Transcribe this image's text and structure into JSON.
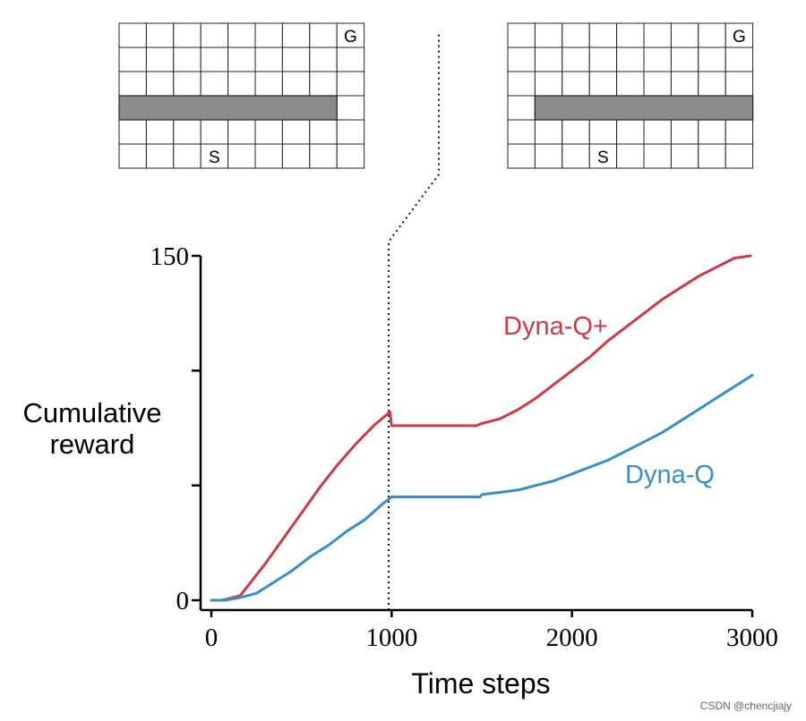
{
  "colors": {
    "dyna_q_plus": "#cc3b45",
    "dyna_q": "#3a8ec2",
    "wall": "#8c8c8c",
    "axis": "#000000"
  },
  "mazes": [
    {
      "rows": 6,
      "cols": 9,
      "wall_row": 3,
      "wall_cols": [
        0,
        7
      ],
      "start": {
        "row": 5,
        "col": 3
      },
      "goal": {
        "row": 0,
        "col": 8
      },
      "start_label": "S",
      "goal_label": "G"
    },
    {
      "rows": 6,
      "cols": 9,
      "wall_row": 3,
      "wall_cols": [
        1,
        8
      ],
      "start": {
        "row": 5,
        "col": 3
      },
      "goal": {
        "row": 0,
        "col": 8
      },
      "start_label": "S",
      "goal_label": "G"
    }
  ],
  "chart_data": {
    "type": "line",
    "title": "",
    "xlabel": "Time steps",
    "ylabel": [
      "Cumulative",
      "reward"
    ],
    "xlim": [
      0,
      3000
    ],
    "ylim": [
      0,
      150
    ],
    "x_ticks": [
      0,
      1000,
      2000,
      3000
    ],
    "y_tick_labels": [
      {
        "value": 0,
        "label": "0"
      },
      {
        "value": 150,
        "label": "150"
      }
    ],
    "y_minor_ticks": [
      50,
      100
    ],
    "environment_change_at": 1000,
    "series": [
      {
        "name": "Dyna-Q+",
        "key": "dyna_q_plus",
        "x": [
          0,
          60,
          160,
          200,
          300,
          400,
          500,
          600,
          700,
          800,
          900,
          990,
          1000,
          1470,
          1500,
          1600,
          1700,
          1800,
          1900,
          2000,
          2100,
          2200,
          2300,
          2400,
          2500,
          2600,
          2700,
          2800,
          2900,
          2990
        ],
        "y": [
          0,
          0,
          2,
          6,
          16,
          27,
          38,
          49,
          59,
          68,
          76,
          82,
          76,
          76,
          77,
          79,
          83,
          88,
          94,
          100,
          106,
          113,
          119,
          125,
          131,
          136,
          141,
          145,
          149,
          150
        ]
      },
      {
        "name": "Dyna-Q",
        "key": "dyna_q",
        "x": [
          0,
          80,
          150,
          250,
          350,
          450,
          550,
          650,
          750,
          850,
          950,
          1000,
          1490,
          1500,
          1600,
          1700,
          1800,
          1900,
          2000,
          2100,
          2200,
          2300,
          2400,
          2500,
          2600,
          2700,
          2800,
          2900,
          3000
        ],
        "y": [
          0,
          0,
          1,
          3,
          8,
          13,
          19,
          24,
          30,
          35,
          42,
          45,
          45,
          46,
          47,
          48,
          50,
          52,
          55,
          58,
          61,
          65,
          69,
          73,
          78,
          83,
          88,
          93,
          98
        ]
      }
    ],
    "annotations": [
      {
        "text": "Dyna-Q+",
        "series": "dyna_q_plus"
      },
      {
        "text": "Dyna-Q",
        "series": "dyna_q"
      }
    ]
  },
  "watermark": "CSDN @chencjiajy"
}
